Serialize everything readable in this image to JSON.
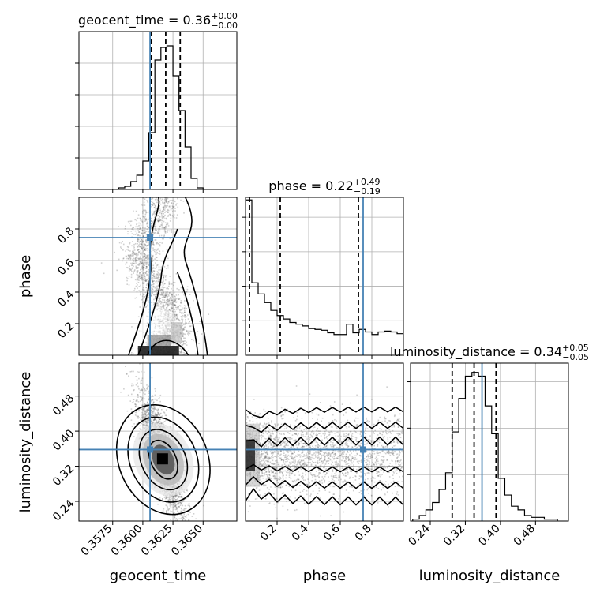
{
  "chart_data": {
    "type": "corner",
    "parameters": [
      "geocent_time",
      "phase",
      "luminosity_distance"
    ],
    "axis_labels": [
      "geocent_time",
      "phase",
      "luminosity_distance"
    ],
    "titles": [
      {
        "prefix": "geocent_time = 0.36",
        "sup": "+0.00",
        "sub": "−0.00"
      },
      {
        "prefix": "phase = 0.22",
        "sup": "+0.49",
        "sub": "−0.19"
      },
      {
        "prefix": "luminosity_distance = 0.34",
        "sup": "+0.05",
        "sub": "−0.05"
      }
    ],
    "ranges": [
      [
        0.3547,
        0.3678
      ],
      [
        0.0,
        1.0
      ],
      [
        0.195,
        0.555
      ]
    ],
    "ticks": [
      {
        "values": [
          0.3575,
          0.36,
          0.3625,
          0.365
        ],
        "labels": [
          "0.3575",
          "0.3600",
          "0.3625",
          "0.3650"
        ]
      },
      {
        "values": [
          0.2,
          0.4,
          0.6,
          0.8
        ],
        "labels": [
          "0.2",
          "0.4",
          "0.6",
          "0.8"
        ]
      },
      {
        "values": [
          0.24,
          0.32,
          0.4,
          0.48
        ],
        "labels": [
          "0.24",
          "0.32",
          "0.40",
          "0.48"
        ]
      }
    ],
    "truth": [
      0.3606,
      0.745,
      0.358
    ],
    "quantiles": [
      [
        0.3607,
        0.3619,
        0.3631
      ],
      [
        0.025,
        0.22,
        0.715
      ],
      [
        0.29,
        0.34,
        0.39
      ]
    ],
    "histograms": [
      {
        "bin_edges": [
          0.358,
          0.3585,
          0.359,
          0.3595,
          0.36,
          0.3605,
          0.361,
          0.3615,
          0.362,
          0.3625,
          0.363,
          0.3635,
          0.364,
          0.3645,
          0.365
        ],
        "counts": [
          1,
          2,
          5,
          9,
          18,
          36,
          82,
          90,
          91,
          72,
          50,
          27,
          7,
          1
        ]
      },
      {
        "bin_edges": [
          0.0,
          0.04,
          0.08,
          0.12,
          0.16,
          0.2,
          0.24,
          0.28,
          0.32,
          0.36,
          0.4,
          0.44,
          0.48,
          0.52,
          0.56,
          0.6,
          0.64,
          0.68,
          0.72,
          0.76,
          0.8,
          0.84,
          0.88,
          0.92,
          0.96,
          1.0
        ],
        "counts": [
          180,
          84,
          71,
          61,
          52,
          46,
          42,
          38,
          36,
          34,
          31,
          30,
          29,
          26,
          24,
          24,
          36,
          26,
          30,
          27,
          24,
          27,
          28,
          27,
          25
        ]
      },
      {
        "bin_edges": [
          0.2,
          0.215,
          0.23,
          0.245,
          0.26,
          0.275,
          0.29,
          0.305,
          0.32,
          0.335,
          0.35,
          0.365,
          0.38,
          0.395,
          0.41,
          0.425,
          0.44,
          0.455,
          0.47,
          0.485,
          0.5,
          0.515,
          0.53
        ],
        "counts": [
          1,
          3,
          6,
          10,
          17,
          26,
          48,
          66,
          78,
          80,
          78,
          62,
          47,
          23,
          14,
          8,
          6,
          3,
          2,
          2,
          1,
          1
        ]
      }
    ],
    "hist_y_ticks": [
      [
        20,
        40,
        60,
        80
      ],
      [
        40,
        80,
        120,
        160
      ],
      [
        25,
        50,
        75
      ]
    ],
    "hist_ymax": [
      100,
      183,
      85
    ],
    "grid": true
  }
}
